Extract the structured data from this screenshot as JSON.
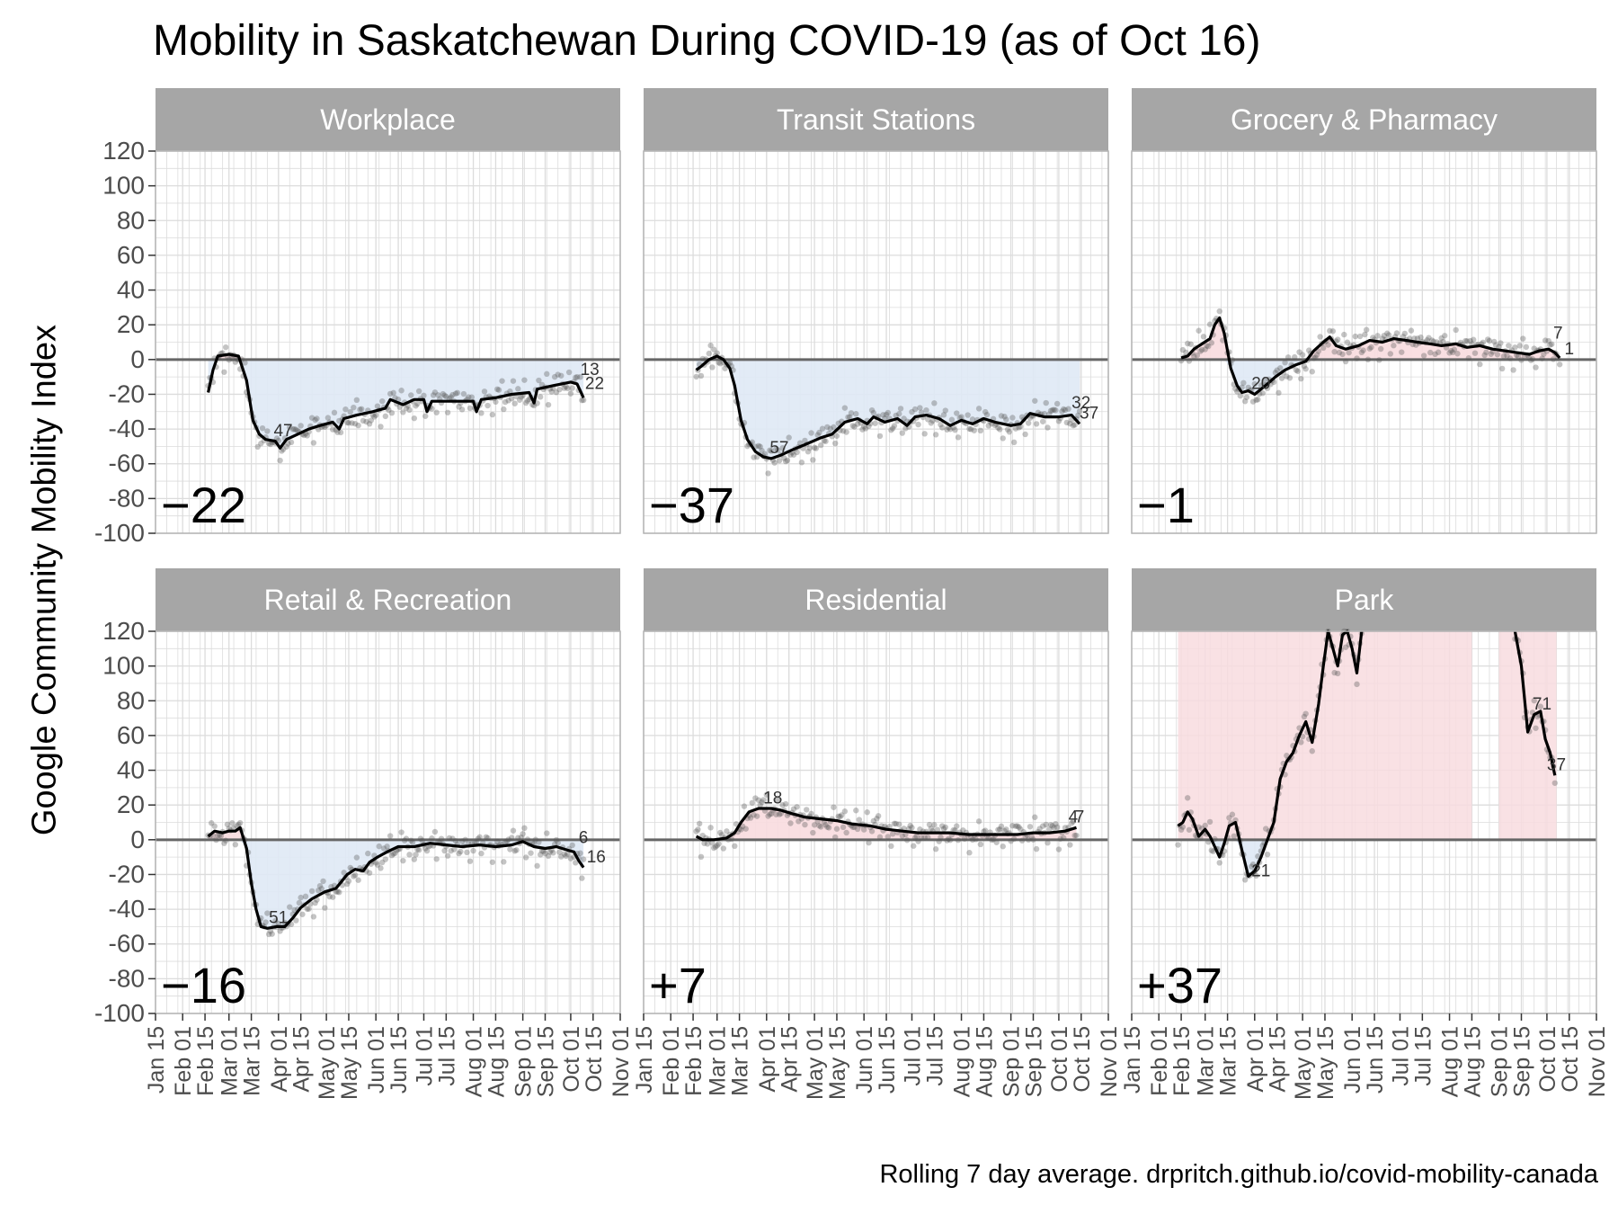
{
  "title": "Mobility in Saskatchewan During COVID-19 (as of Oct 16)",
  "ylabel": "Google Community Mobility Index",
  "caption": "Rolling 7 day average. drpritch.github.io/covid-mobility-canada",
  "colors": {
    "above": "#f8dcdf",
    "below": "#dfe9f5",
    "line": "#000000",
    "points": "#555555",
    "strip": "#a6a6a6",
    "grid": "#dcdcdc",
    "panel_border": "#b3b3b3"
  },
  "chart_data": {
    "type": "line",
    "facets": 6,
    "ylim": [
      -100,
      120
    ],
    "yticks": [
      120,
      100,
      80,
      60,
      40,
      20,
      0,
      -20,
      -40,
      -60,
      -80,
      -100
    ],
    "ytick_labels": [
      "120",
      "100",
      "80",
      "60",
      "40",
      "20",
      "0",
      "-20",
      "-40",
      "-60",
      "-80",
      "-100"
    ],
    "xlim": [
      "2020-01-15",
      "2020-11-01"
    ],
    "xticks": [
      "2020-01-15",
      "2020-02-01",
      "2020-02-15",
      "2020-03-01",
      "2020-03-15",
      "2020-04-01",
      "2020-04-15",
      "2020-05-01",
      "2020-05-15",
      "2020-06-01",
      "2020-06-15",
      "2020-07-01",
      "2020-07-15",
      "2020-08-01",
      "2020-08-15",
      "2020-09-01",
      "2020-09-15",
      "2020-10-01",
      "2020-10-15",
      "2020-11-01"
    ],
    "xtick_labels": [
      "Jan 15",
      "Feb 01",
      "Feb 15",
      "Mar 01",
      "Mar 15",
      "Apr 01",
      "Apr 15",
      "May 01",
      "May 15",
      "Jun 01",
      "Jun 15",
      "Jul 01",
      "Jul 15",
      "Aug 01",
      "Aug 15",
      "Sep 01",
      "Sep 15",
      "Oct 01",
      "Oct 15",
      "Nov 01"
    ],
    "panels": [
      {
        "name": "Workplace",
        "current": "−22",
        "labels": [
          {
            "text": "47",
            "x": "2020-03-29",
            "y": -44
          },
          {
            "text": "13",
            "x": "2020-10-07",
            "y": -9
          },
          {
            "text": "22",
            "x": "2020-10-10",
            "y": -17
          }
        ],
        "series": [
          [
            "2020-02-17",
            -19
          ],
          [
            "2020-02-20",
            -6
          ],
          [
            "2020-02-23",
            2
          ],
          [
            "2020-03-01",
            3
          ],
          [
            "2020-03-07",
            2
          ],
          [
            "2020-03-12",
            -12
          ],
          [
            "2020-03-16",
            -35
          ],
          [
            "2020-03-20",
            -43
          ],
          [
            "2020-03-24",
            -46
          ],
          [
            "2020-03-30",
            -47
          ],
          [
            "2020-04-02",
            -51
          ],
          [
            "2020-04-06",
            -46
          ],
          [
            "2020-04-13",
            -43
          ],
          [
            "2020-04-20",
            -40
          ],
          [
            "2020-04-27",
            -38
          ],
          [
            "2020-05-05",
            -36
          ],
          [
            "2020-05-09",
            -40
          ],
          [
            "2020-05-12",
            -34
          ],
          [
            "2020-05-20",
            -32
          ],
          [
            "2020-05-30",
            -30
          ],
          [
            "2020-06-07",
            -28
          ],
          [
            "2020-06-10",
            -23
          ],
          [
            "2020-06-18",
            -26
          ],
          [
            "2020-06-25",
            -23
          ],
          [
            "2020-07-01",
            -23
          ],
          [
            "2020-07-03",
            -30
          ],
          [
            "2020-07-06",
            -24
          ],
          [
            "2020-07-20",
            -24
          ],
          [
            "2020-08-01",
            -24
          ],
          [
            "2020-08-03",
            -30
          ],
          [
            "2020-08-06",
            -23
          ],
          [
            "2020-08-15",
            -22
          ],
          [
            "2020-08-25",
            -20
          ],
          [
            "2020-09-05",
            -19
          ],
          [
            "2020-09-08",
            -25
          ],
          [
            "2020-09-10",
            -17
          ],
          [
            "2020-09-20",
            -15
          ],
          [
            "2020-10-01",
            -13
          ],
          [
            "2020-10-05",
            -14
          ],
          [
            "2020-10-09",
            -22
          ]
        ]
      },
      {
        "name": "Transit Stations",
        "current": "−37",
        "labels": [
          {
            "text": "57",
            "x": "2020-04-03",
            "y": -54
          },
          {
            "text": "32",
            "x": "2020-10-09",
            "y": -28
          },
          {
            "text": "37",
            "x": "2020-10-14",
            "y": -34
          }
        ],
        "series": [
          [
            "2020-02-17",
            -6
          ],
          [
            "2020-02-20",
            -4
          ],
          [
            "2020-02-25",
            0
          ],
          [
            "2020-03-01",
            2
          ],
          [
            "2020-03-05",
            0
          ],
          [
            "2020-03-09",
            -5
          ],
          [
            "2020-03-12",
            -15
          ],
          [
            "2020-03-16",
            -35
          ],
          [
            "2020-03-20",
            -46
          ],
          [
            "2020-03-25",
            -53
          ],
          [
            "2020-03-30",
            -56
          ],
          [
            "2020-04-04",
            -57
          ],
          [
            "2020-04-10",
            -55
          ],
          [
            "2020-04-17",
            -52
          ],
          [
            "2020-04-25",
            -49
          ],
          [
            "2020-05-05",
            -45
          ],
          [
            "2020-05-12",
            -43
          ],
          [
            "2020-05-20",
            -36
          ],
          [
            "2020-05-28",
            -34
          ],
          [
            "2020-06-03",
            -37
          ],
          [
            "2020-06-07",
            -33
          ],
          [
            "2020-06-14",
            -36
          ],
          [
            "2020-06-22",
            -34
          ],
          [
            "2020-06-28",
            -38
          ],
          [
            "2020-07-03",
            -33
          ],
          [
            "2020-07-10",
            -32
          ],
          [
            "2020-07-18",
            -34
          ],
          [
            "2020-07-25",
            -38
          ],
          [
            "2020-08-01",
            -35
          ],
          [
            "2020-08-08",
            -37
          ],
          [
            "2020-08-15",
            -34
          ],
          [
            "2020-08-22",
            -36
          ],
          [
            "2020-09-01",
            -38
          ],
          [
            "2020-09-07",
            -37
          ],
          [
            "2020-09-13",
            -31
          ],
          [
            "2020-09-22",
            -33
          ],
          [
            "2020-10-01",
            -33
          ],
          [
            "2020-10-09",
            -32
          ],
          [
            "2020-10-14",
            -37
          ]
        ]
      },
      {
        "name": "Grocery & Pharmacy",
        "current": "−1",
        "labels": [
          {
            "text": "20",
            "x": "2020-03-30",
            "y": -17
          },
          {
            "text": "7",
            "x": "2020-10-05",
            "y": 12
          },
          {
            "text": "1",
            "x": "2020-10-12",
            "y": 3
          }
        ],
        "series": [
          [
            "2020-02-15",
            1
          ],
          [
            "2020-02-19",
            2
          ],
          [
            "2020-02-23",
            6
          ],
          [
            "2020-02-28",
            9
          ],
          [
            "2020-03-04",
            12
          ],
          [
            "2020-03-07",
            20
          ],
          [
            "2020-03-10",
            24
          ],
          [
            "2020-03-13",
            15
          ],
          [
            "2020-03-17",
            -5
          ],
          [
            "2020-03-21",
            -15
          ],
          [
            "2020-03-24",
            -19
          ],
          [
            "2020-03-28",
            -18
          ],
          [
            "2020-04-01",
            -20
          ],
          [
            "2020-04-05",
            -17
          ],
          [
            "2020-04-09",
            -14
          ],
          [
            "2020-04-14",
            -10
          ],
          [
            "2020-04-20",
            -6
          ],
          [
            "2020-04-27",
            -3
          ],
          [
            "2020-05-03",
            -1
          ],
          [
            "2020-05-08",
            5
          ],
          [
            "2020-05-14",
            10
          ],
          [
            "2020-05-18",
            13
          ],
          [
            "2020-05-22",
            8
          ],
          [
            "2020-05-28",
            6
          ],
          [
            "2020-06-05",
            8
          ],
          [
            "2020-06-12",
            11
          ],
          [
            "2020-06-20",
            10
          ],
          [
            "2020-06-27",
            12
          ],
          [
            "2020-07-05",
            11
          ],
          [
            "2020-07-12",
            10
          ],
          [
            "2020-07-20",
            9
          ],
          [
            "2020-07-27",
            8
          ],
          [
            "2020-08-05",
            9
          ],
          [
            "2020-08-12",
            7
          ],
          [
            "2020-08-20",
            8
          ],
          [
            "2020-08-28",
            6
          ],
          [
            "2020-09-05",
            5
          ],
          [
            "2020-09-12",
            4
          ],
          [
            "2020-09-20",
            3
          ],
          [
            "2020-09-26",
            5
          ],
          [
            "2020-10-02",
            6
          ],
          [
            "2020-10-06",
            4
          ],
          [
            "2020-10-09",
            1
          ]
        ]
      },
      {
        "name": "Retail & Recreation",
        "current": "−16",
        "labels": [
          {
            "text": "51",
            "x": "2020-03-26",
            "y": -48
          },
          {
            "text": "6",
            "x": "2020-10-06",
            "y": -2
          },
          {
            "text": "16",
            "x": "2020-10-11",
            "y": -13
          }
        ],
        "series": [
          [
            "2020-02-17",
            2
          ],
          [
            "2020-02-21",
            5
          ],
          [
            "2020-02-26",
            4
          ],
          [
            "2020-03-01",
            5
          ],
          [
            "2020-03-05",
            5
          ],
          [
            "2020-03-08",
            7
          ],
          [
            "2020-03-12",
            -5
          ],
          [
            "2020-03-15",
            -25
          ],
          [
            "2020-03-18",
            -40
          ],
          [
            "2020-03-21",
            -50
          ],
          [
            "2020-03-25",
            -51
          ],
          [
            "2020-03-31",
            -50
          ],
          [
            "2020-04-05",
            -50
          ],
          [
            "2020-04-10",
            -45
          ],
          [
            "2020-04-15",
            -39
          ],
          [
            "2020-04-22",
            -34
          ],
          [
            "2020-04-30",
            -30
          ],
          [
            "2020-05-07",
            -28
          ],
          [
            "2020-05-14",
            -20
          ],
          [
            "2020-05-19",
            -17
          ],
          [
            "2020-05-24",
            -18
          ],
          [
            "2020-05-28",
            -13
          ],
          [
            "2020-06-02",
            -10
          ],
          [
            "2020-06-08",
            -7
          ],
          [
            "2020-06-15",
            -4
          ],
          [
            "2020-06-25",
            -4
          ],
          [
            "2020-07-05",
            -2
          ],
          [
            "2020-07-15",
            -3
          ],
          [
            "2020-07-25",
            -4
          ],
          [
            "2020-08-05",
            -3
          ],
          [
            "2020-08-15",
            -4
          ],
          [
            "2020-08-25",
            -3
          ],
          [
            "2020-09-01",
            -1
          ],
          [
            "2020-09-08",
            -4
          ],
          [
            "2020-09-15",
            -5
          ],
          [
            "2020-09-22",
            -4
          ],
          [
            "2020-09-29",
            -6
          ],
          [
            "2020-10-03",
            -7
          ],
          [
            "2020-10-06",
            -12
          ],
          [
            "2020-10-09",
            -16
          ]
        ]
      },
      {
        "name": "Residential",
        "current": "+7",
        "labels": [
          {
            "text": "18",
            "x": "2020-03-30",
            "y": 21
          },
          {
            "text": "4",
            "x": "2020-10-07",
            "y": 10
          },
          {
            "text": "7",
            "x": "2020-10-11",
            "y": 10
          }
        ],
        "series": [
          [
            "2020-02-17",
            2
          ],
          [
            "2020-02-21",
            0
          ],
          [
            "2020-02-28",
            0
          ],
          [
            "2020-03-07",
            1
          ],
          [
            "2020-03-12",
            4
          ],
          [
            "2020-03-16",
            10
          ],
          [
            "2020-03-21",
            16
          ],
          [
            "2020-03-27",
            18
          ],
          [
            "2020-04-04",
            18
          ],
          [
            "2020-04-10",
            17
          ],
          [
            "2020-04-17",
            15
          ],
          [
            "2020-04-25",
            13
          ],
          [
            "2020-05-05",
            12
          ],
          [
            "2020-05-15",
            11
          ],
          [
            "2020-05-25",
            9
          ],
          [
            "2020-06-05",
            8
          ],
          [
            "2020-06-15",
            6
          ],
          [
            "2020-06-25",
            5
          ],
          [
            "2020-07-05",
            4
          ],
          [
            "2020-07-15",
            4
          ],
          [
            "2020-07-25",
            4
          ],
          [
            "2020-08-05",
            3
          ],
          [
            "2020-08-15",
            3
          ],
          [
            "2020-08-25",
            3
          ],
          [
            "2020-09-05",
            3
          ],
          [
            "2020-09-15",
            4
          ],
          [
            "2020-09-25",
            4
          ],
          [
            "2020-10-05",
            5
          ],
          [
            "2020-10-12",
            7
          ]
        ]
      },
      {
        "name": "Park",
        "current": "+37",
        "labels": [
          {
            "text": "21",
            "x": "2020-03-30",
            "y": -21
          },
          {
            "text": "71",
            "x": "2020-09-22",
            "y": 75
          },
          {
            "text": "37",
            "x": "2020-10-01",
            "y": 40
          }
        ],
        "series": [
          [
            "2020-02-13",
            8
          ],
          [
            "2020-02-16",
            10
          ],
          [
            "2020-02-19",
            16
          ],
          [
            "2020-02-22",
            12
          ],
          [
            "2020-02-26",
            2
          ],
          [
            "2020-03-01",
            6
          ],
          [
            "2020-03-04",
            2
          ],
          [
            "2020-03-07",
            -4
          ],
          [
            "2020-03-10",
            -10
          ],
          [
            "2020-03-13",
            -2
          ],
          [
            "2020-03-16",
            8
          ],
          [
            "2020-03-20",
            10
          ],
          [
            "2020-03-24",
            -6
          ],
          [
            "2020-03-28",
            -21
          ],
          [
            "2020-04-01",
            -18
          ],
          [
            "2020-04-05",
            -10
          ],
          [
            "2020-04-09",
            0
          ],
          [
            "2020-04-13",
            10
          ],
          [
            "2020-04-17",
            35
          ],
          [
            "2020-04-21",
            45
          ],
          [
            "2020-04-25",
            50
          ],
          [
            "2020-04-29",
            60
          ],
          [
            "2020-05-03",
            68
          ],
          [
            "2020-05-07",
            56
          ],
          [
            "2020-05-11",
            78
          ],
          [
            "2020-05-14",
            100
          ],
          [
            "2020-05-17",
            120
          ],
          [
            "2020-05-20",
            110
          ],
          [
            "2020-05-23",
            100
          ],
          [
            "2020-05-26",
            118
          ],
          [
            "2020-05-29",
            120
          ],
          [
            "2020-06-01",
            110
          ],
          [
            "2020-06-04",
            96
          ],
          [
            "2020-06-07",
            120
          ],
          null,
          [
            "2020-09-11",
            120
          ],
          [
            "2020-09-15",
            100
          ],
          [
            "2020-09-19",
            62
          ],
          [
            "2020-09-23",
            72
          ],
          [
            "2020-09-27",
            74
          ],
          [
            "2020-09-30",
            58
          ],
          [
            "2020-10-03",
            50
          ],
          [
            "2020-10-06",
            37
          ]
        ],
        "shade": [
          [
            "2020-02-13",
            "2020-08-15"
          ],
          [
            "2020-09-01",
            "2020-10-07"
          ]
        ]
      }
    ]
  }
}
